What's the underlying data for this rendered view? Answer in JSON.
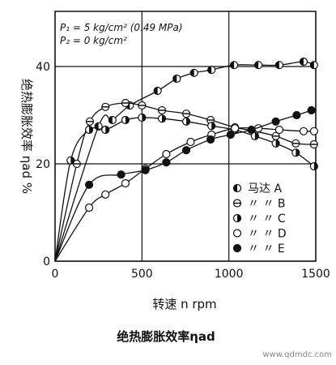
{
  "chart_data": {
    "type": "line",
    "annotations": [
      "P₁ = 5 kg/cm² (0.49 MPa)",
      "P₂ = 0 kg/cm²"
    ],
    "x_label": "转速 n rpm",
    "y_label": "绝热膨胀效率 ηad %",
    "caption": "绝热膨胀效率ηad",
    "watermark": "www.qdmdc.com",
    "xlim": [
      0,
      1500
    ],
    "xticks": [
      0,
      500,
      1000,
      1500
    ],
    "ylim": [
      0,
      50
    ],
    "yticks": [
      0,
      20,
      40
    ],
    "grid": true,
    "legend": "lower right",
    "series": [
      {
        "name": "马达 A",
        "marker": "half-left",
        "x": [
          0,
          250,
          330,
          430,
          590,
          700,
          800,
          900,
          1030,
          1170,
          1290,
          1430,
          1490
        ],
        "values": [
          0,
          27.7,
          29,
          32,
          35,
          37.5,
          38.7,
          39.3,
          40.3,
          40.3,
          40.3,
          41,
          40.3
        ]
      },
      {
        "name": "〃 〃 B",
        "marker": "bar",
        "x": [
          0,
          125,
          200,
          290,
          405,
          500,
          615,
          755,
          895,
          1035,
          1150,
          1270,
          1385,
          1490
        ],
        "values": [
          0,
          20,
          28.7,
          31.7,
          32.5,
          32,
          31,
          30.3,
          29,
          27.5,
          26.7,
          25.7,
          24.2,
          24
        ]
      },
      {
        "name": "〃 〃 C",
        "marker": "half-right",
        "x": [
          0,
          90,
          196,
          290,
          405,
          500,
          615,
          755,
          900,
          1035,
          1150,
          1270,
          1385,
          1490
        ],
        "values": [
          0,
          20.7,
          27,
          27,
          29,
          29.5,
          29.3,
          28.7,
          27.8,
          27,
          25.7,
          24.2,
          22.3,
          19.5
        ]
      },
      {
        "name": "〃 〃 D",
        "marker": "open",
        "x": [
          0,
          196,
          290,
          405,
          520,
          640,
          780,
          900,
          1035,
          1170,
          1290,
          1430,
          1490
        ],
        "values": [
          0,
          11,
          13.7,
          16,
          19,
          22,
          24.5,
          26,
          27.3,
          27.3,
          27,
          26.7,
          26.7
        ]
      },
      {
        "name": "〃 〃 E",
        "marker": "filled",
        "x": [
          0,
          196,
          380,
          520,
          640,
          755,
          895,
          1010,
          1130,
          1270,
          1390,
          1475
        ],
        "values": [
          0,
          15.7,
          17.8,
          18.7,
          20.3,
          22.8,
          25,
          26,
          27,
          28.7,
          30,
          31
        ]
      }
    ]
  }
}
